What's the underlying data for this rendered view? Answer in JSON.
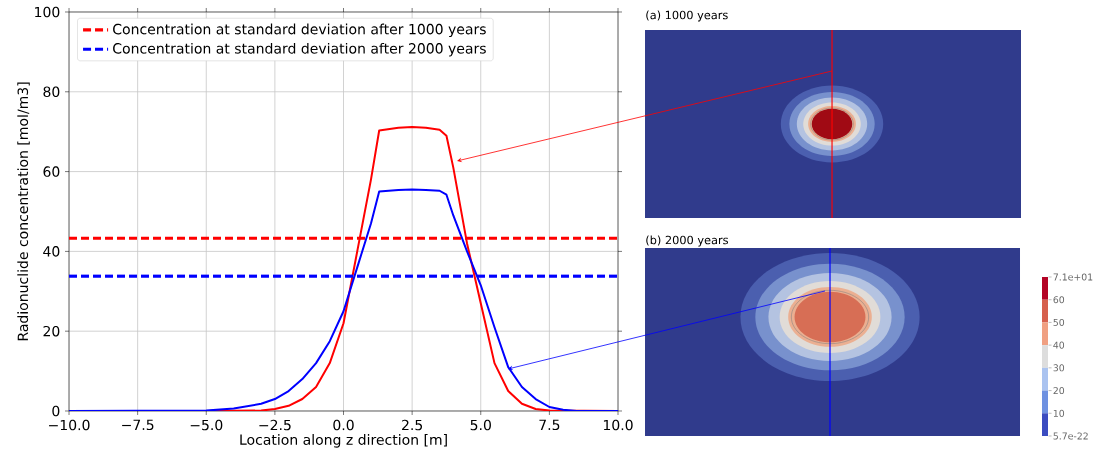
{
  "chart_data": [
    {
      "type": "line",
      "xlabel": "Location along z direction [m]",
      "ylabel": "Radionuclide concentration [mol/m3]",
      "xlim": [
        -10,
        10
      ],
      "ylim": [
        0,
        100
      ],
      "xticks": [
        {
          "value": -10,
          "label": "−10.0"
        },
        {
          "value": -7.5,
          "label": "−7.5"
        },
        {
          "value": -5,
          "label": "−5.0"
        },
        {
          "value": -2.5,
          "label": "−2.5"
        },
        {
          "value": 0,
          "label": "0.0"
        },
        {
          "value": 2.5,
          "label": "2.5"
        },
        {
          "value": 5,
          "label": "5.0"
        },
        {
          "value": 7.5,
          "label": "7.5"
        },
        {
          "value": 10,
          "label": "10.0"
        }
      ],
      "yticks": [
        0,
        20,
        40,
        60,
        80,
        100
      ],
      "grid": true,
      "legend": "top left",
      "marker": "none",
      "line_style": "solid",
      "series": [
        {
          "color": "#ff0000",
          "x": [
            -10,
            -5,
            -3,
            -2.5,
            -2,
            -1.5,
            -1,
            -0.5,
            0,
            0.5,
            1,
            1.3,
            2,
            2.5,
            3,
            3.5,
            3.75,
            4,
            4.5,
            4.8,
            5,
            5.5,
            6,
            6.5,
            7,
            7.5,
            10
          ],
          "values": [
            0,
            0,
            0.1,
            0.5,
            1.3,
            3,
            6,
            12,
            22,
            40,
            58,
            70.3,
            71,
            71.2,
            71,
            70.5,
            69,
            61,
            42,
            33,
            27,
            12,
            5,
            1.8,
            0.5,
            0.1,
            0
          ]
        },
        {
          "color": "#0000ff",
          "x": [
            -10,
            -5,
            -4,
            -3,
            -2.5,
            -2,
            -1.5,
            -1,
            -0.5,
            0,
            0.5,
            1,
            1.3,
            2,
            2.5,
            3,
            3.5,
            3.75,
            4,
            4.5,
            5,
            5.5,
            6,
            6.5,
            7,
            7.5,
            8,
            8.5,
            10
          ],
          "values": [
            0,
            0.1,
            0.6,
            1.8,
            3,
            5,
            8,
            12,
            17.5,
            25,
            36,
            47,
            55,
            55.4,
            55.5,
            55.4,
            55.2,
            54.2,
            49,
            40,
            31.5,
            21,
            11,
            6,
            3,
            1,
            0.3,
            0,
            0
          ]
        }
      ],
      "ref_lines": [
        {
          "axis": "y",
          "value": 43.3,
          "label": "Concentration at standard deviation after 1000 years",
          "color": "#ff0000",
          "line_style": "dashed"
        },
        {
          "axis": "y",
          "value": 33.8,
          "label": "Concentration at standard deviation after 2000 years",
          "color": "#0000ff",
          "line_style": "dashed"
        }
      ]
    },
    {
      "type": "other",
      "annotations": [
        "(a) 1000 years",
        "(b) 2000 years",
        "7.1e+01",
        "60",
        "50",
        "40",
        "30",
        "20",
        "10",
        "5.7e-22"
      ]
    }
  ]
}
